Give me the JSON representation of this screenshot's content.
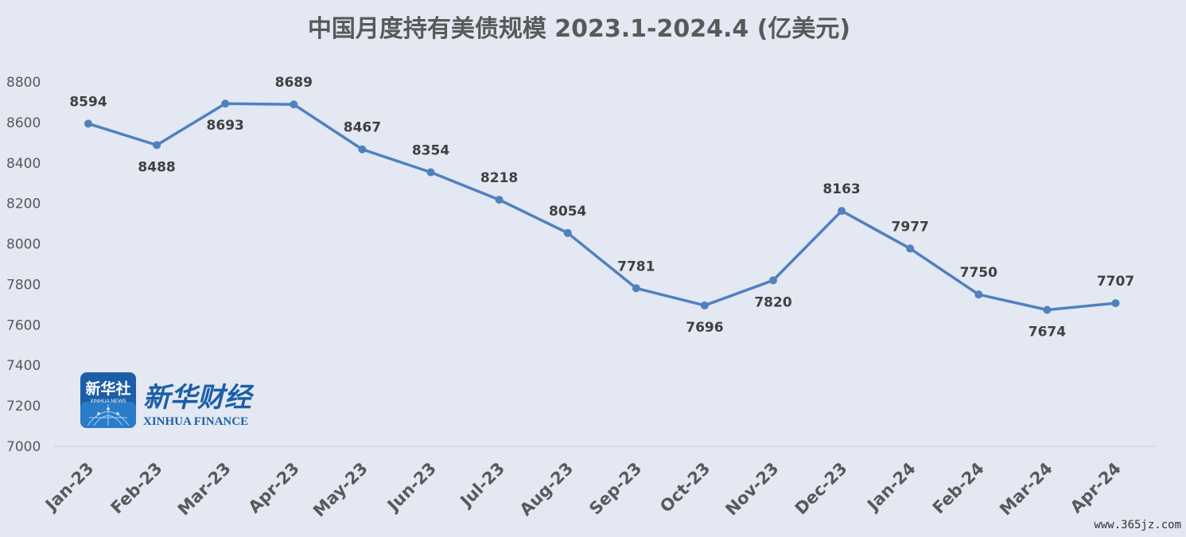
{
  "chart_data": {
    "type": "line",
    "title": "中国月度持有美债规模 2023.1-2024.4 (亿美元)",
    "categories": [
      "Jan-23",
      "Feb-23",
      "Mar-23",
      "Apr-23",
      "May-23",
      "Jun-23",
      "Jul-23",
      "Aug-23",
      "Sep-23",
      "Oct-23",
      "Nov-23",
      "Dec-23",
      "Jan-24",
      "Feb-24",
      "Mar-24",
      "Apr-24"
    ],
    "values": [
      8594,
      8488,
      8693,
      8689,
      8467,
      8354,
      8218,
      8054,
      7781,
      7696,
      7820,
      8163,
      7977,
      7750,
      7674,
      7707
    ],
    "ylim": [
      7000,
      8800
    ],
    "yticks": [
      7000,
      7200,
      7400,
      7600,
      7800,
      8000,
      8200,
      8400,
      8600,
      8800
    ],
    "grid": false,
    "line_color": "#4f81bd"
  },
  "logo": {
    "badge_text": "新华社",
    "badge_sub": "XINHUA NEWS",
    "brand_cn": "新华财经",
    "brand_en": "XINHUA FINANCE"
  },
  "watermark": "www.365jz.com"
}
